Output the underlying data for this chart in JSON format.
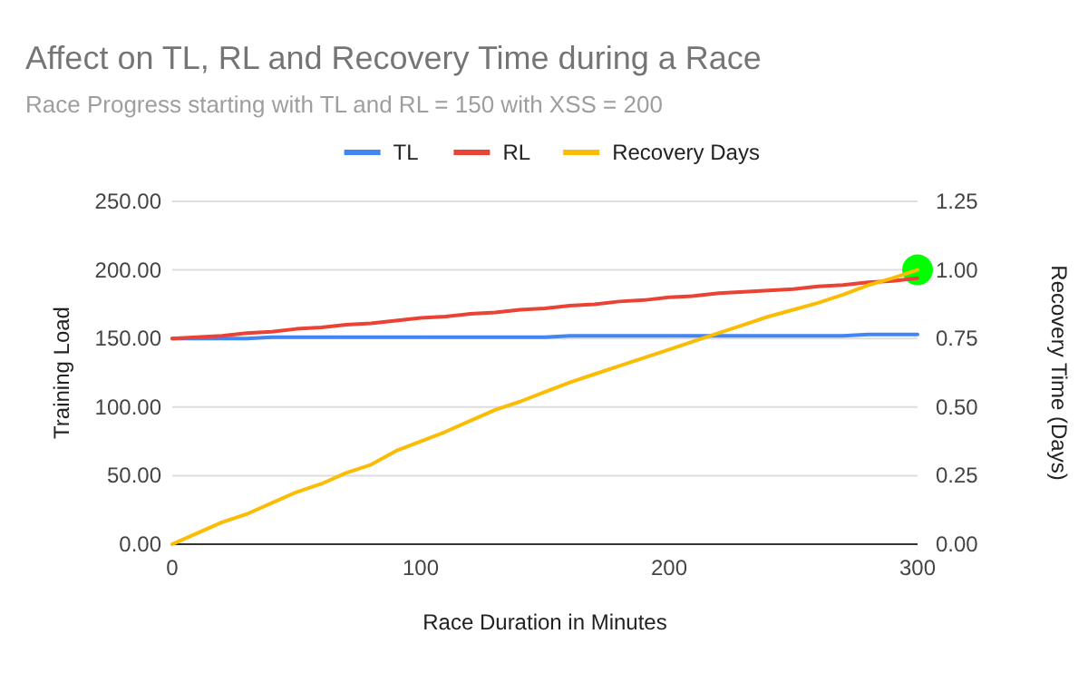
{
  "chart_data": {
    "type": "line",
    "title": "Affect on TL, RL and Recovery Time during a Race",
    "subtitle": "Race Progress starting with TL and RL = 150 with XSS = 200",
    "xlabel": "Race Duration in Minutes",
    "ylabel": "Training Load",
    "y2label": "Recovery Time (Days)",
    "x": [
      0,
      10,
      20,
      30,
      40,
      50,
      60,
      70,
      80,
      90,
      100,
      110,
      120,
      130,
      140,
      150,
      160,
      170,
      180,
      190,
      200,
      210,
      220,
      230,
      240,
      250,
      260,
      270,
      280,
      290,
      300
    ],
    "series": [
      {
        "name": "TL",
        "color": "#4285f4",
        "values": [
          150,
          150,
          150,
          150,
          151,
          151,
          151,
          151,
          151,
          151,
          151,
          151,
          151,
          151,
          151,
          151,
          152,
          152,
          152,
          152,
          152,
          152,
          152,
          152,
          152,
          152,
          152,
          152,
          153,
          153,
          153
        ]
      },
      {
        "name": "RL",
        "color": "#ea4335",
        "values": [
          150,
          151,
          152,
          154,
          155,
          157,
          158,
          160,
          161,
          163,
          165,
          166,
          168,
          169,
          171,
          172,
          174,
          175,
          177,
          178,
          180,
          181,
          183,
          184,
          185,
          186,
          188,
          189,
          191,
          192,
          194
        ]
      },
      {
        "name": "Recovery Days",
        "color": "#fbbc04",
        "axis": "y2",
        "values": [
          0,
          0.04,
          0.08,
          0.11,
          0.15,
          0.19,
          0.22,
          0.26,
          0.29,
          0.34,
          0.375,
          0.41,
          0.45,
          0.49,
          0.52,
          0.555,
          0.59,
          0.62,
          0.65,
          0.68,
          0.71,
          0.74,
          0.77,
          0.8,
          0.83,
          0.855,
          0.88,
          0.91,
          0.944,
          0.97,
          1.0
        ]
      },
      {
        "type": "scatter",
        "color": "#00ff00",
        "axis": "y2",
        "x": [
          300
        ],
        "values": [
          1.0
        ],
        "marker": "circle"
      }
    ],
    "xlim": [
      0,
      300
    ],
    "xticks": [
      0,
      100,
      200,
      300
    ],
    "ylim": [
      0,
      250
    ],
    "yticks": [
      {
        "value": 0,
        "label": "0.00"
      },
      {
        "value": 50,
        "label": "50.00"
      },
      {
        "value": 100,
        "label": "100.00"
      },
      {
        "value": 150,
        "label": "150.00"
      },
      {
        "value": 200,
        "label": "200.00"
      },
      {
        "value": 250,
        "label": "250.00"
      }
    ],
    "y2lim": [
      0,
      1.25
    ],
    "y2ticks": [
      {
        "value": 0,
        "label": "0.00"
      },
      {
        "value": 0.25,
        "label": "0.25"
      },
      {
        "value": 0.5,
        "label": "0.50"
      },
      {
        "value": 0.75,
        "label": "0.75"
      },
      {
        "value": 1,
        "label": "1.00"
      },
      {
        "value": 1.25,
        "label": "1.25"
      }
    ],
    "grid": "y",
    "legend": "top",
    "marker": "none",
    "line_style": "solid"
  }
}
